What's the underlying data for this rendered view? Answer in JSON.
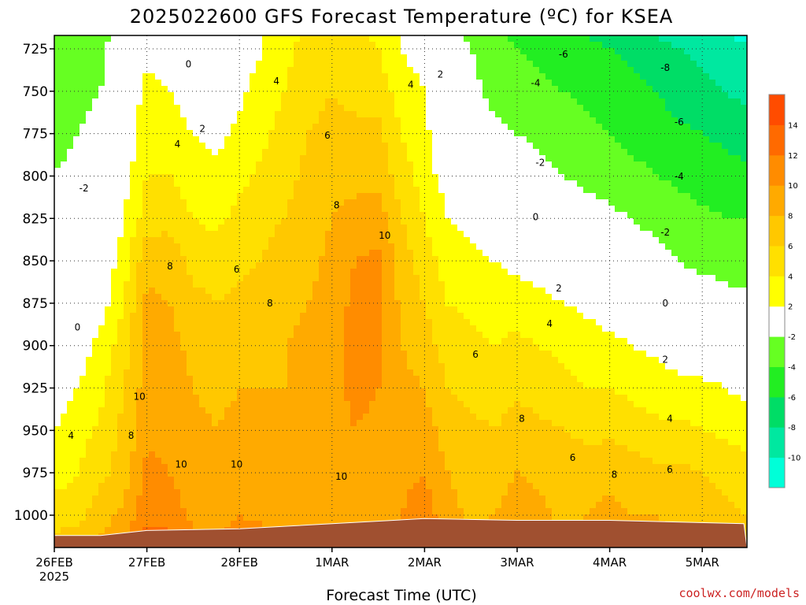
{
  "chart_data": {
    "type": "heatmap",
    "title": "2025022600 GFS Forecast Temperature (ºC) for KSEA",
    "xlabel": "Forecast Time (UTC)",
    "ylabel": "",
    "credit": "coolwx.com/models",
    "x_ticks": [
      {
        "label": "26FEB",
        "sublabel": "2025",
        "day": 0
      },
      {
        "label": "27FEB",
        "sublabel": "",
        "day": 1
      },
      {
        "label": "28FEB",
        "sublabel": "",
        "day": 2
      },
      {
        "label": "1MAR",
        "sublabel": "",
        "day": 3
      },
      {
        "label": "2MAR",
        "sublabel": "",
        "day": 4
      },
      {
        "label": "3MAR",
        "sublabel": "",
        "day": 5
      },
      {
        "label": "4MAR",
        "sublabel": "",
        "day": 6
      },
      {
        "label": "5MAR",
        "sublabel": "",
        "day": 7
      }
    ],
    "xlim": [
      0,
      7.45
    ],
    "y_ticks": [
      725,
      750,
      775,
      800,
      825,
      850,
      875,
      900,
      925,
      950,
      975,
      1000
    ],
    "ylim": [
      1017,
      717
    ],
    "y_scale": "pressure (hPa), decreasing upward",
    "grid": true,
    "colorbar": {
      "levels": [
        -10,
        -8,
        -6,
        -4,
        -2,
        2,
        4,
        6,
        8,
        10,
        12,
        14
      ],
      "colors": [
        "#00ffd8",
        "#00e8a0",
        "#00dd66",
        "#22ee22",
        "#66ff22",
        "#ffffff",
        "#ffff00",
        "#ffe000",
        "#ffc800",
        "#ffaa00",
        "#ff8c00",
        "#ff6a00",
        "#ff4c00"
      ],
      "position": "right"
    },
    "zero_contour_color": "#c8006e",
    "terrain_color": "#a05030",
    "times_days": [
      0,
      0.25,
      0.5,
      0.75,
      1,
      1.25,
      1.5,
      1.75,
      2,
      2.25,
      2.5,
      2.75,
      3,
      3.25,
      3.5,
      3.75,
      4,
      4.25,
      4.5,
      4.75,
      5,
      5.25,
      5.5,
      5.75,
      6,
      6.25,
      6.5,
      6.75,
      7,
      7.25,
      7.45
    ],
    "levels_hpa": [
      1010,
      1000,
      975,
      950,
      925,
      900,
      875,
      850,
      825,
      800,
      775,
      750,
      725,
      717
    ],
    "temperature_c": [
      [
        6.0,
        5.0,
        3.0,
        2.0,
        1.0,
        0.5,
        -0.5,
        -1.0,
        -1.5,
        -2.0,
        -2.5,
        -3.0,
        -3.5,
        -4.0
      ],
      [
        6.5,
        5.5,
        4.0,
        3.0,
        2.0,
        1.0,
        0.5,
        -0.5,
        -1.0,
        -1.5,
        -2.0,
        -2.5,
        -3.0,
        -3.5
      ],
      [
        8.0,
        7.0,
        5.5,
        4.5,
        3.5,
        2.5,
        1.0,
        0.0,
        -0.5,
        -1.0,
        -1.5,
        -2.0,
        -2.5,
        -3.0
      ],
      [
        9.5,
        8.5,
        7.0,
        6.5,
        6.0,
        5.0,
        4.0,
        3.0,
        2.0,
        1.0,
        0.5,
        0.0,
        -0.5,
        -0.5
      ],
      [
        12.5,
        11.5,
        10.5,
        9.5,
        9.0,
        9.0,
        8.5,
        7.5,
        5.0,
        4.0,
        3.5,
        2.5,
        1.5,
        1.0
      ],
      [
        12.0,
        11.0,
        10.0,
        9.5,
        9.0,
        8.5,
        8.0,
        7.0,
        5.5,
        4.0,
        3.0,
        2.0,
        0.5,
        0.0
      ],
      [
        10.0,
        9.5,
        9.0,
        8.5,
        8.0,
        7.5,
        6.5,
        5.5,
        4.0,
        3.0,
        2.0,
        1.0,
        0.0,
        -0.5
      ],
      [
        9.5,
        9.0,
        8.5,
        8.0,
        7.5,
        7.0,
        6.0,
        5.0,
        3.5,
        2.5,
        1.5,
        0.5,
        0.0,
        0.0
      ],
      [
        11.0,
        10.0,
        9.0,
        8.5,
        8.0,
        7.5,
        6.5,
        5.5,
        4.5,
        3.5,
        2.5,
        1.5,
        0.5,
        0.5
      ],
      [
        10.5,
        9.5,
        9.0,
        8.5,
        8.0,
        7.5,
        7.0,
        6.0,
        5.5,
        4.5,
        3.5,
        3.0,
        2.0,
        2.0
      ],
      [
        9.5,
        9.0,
        8.5,
        8.5,
        8.0,
        8.0,
        7.5,
        7.0,
        6.0,
        5.5,
        5.0,
        4.0,
        3.5,
        3.0
      ],
      [
        9.0,
        8.5,
        8.5,
        8.5,
        8.5,
        8.5,
        8.0,
        7.5,
        7.0,
        6.5,
        6.0,
        5.5,
        5.0,
        4.5
      ],
      [
        9.5,
        9.0,
        9.0,
        9.0,
        9.5,
        9.5,
        9.0,
        8.5,
        8.0,
        7.5,
        6.5,
        6.0,
        5.0,
        5.0
      ],
      [
        10.0,
        9.5,
        9.5,
        10.0,
        10.5,
        10.5,
        10.5,
        10.0,
        8.5,
        7.5,
        6.5,
        5.5,
        4.5,
        4.5
      ],
      [
        10.0,
        9.5,
        9.5,
        9.5,
        10.0,
        10.5,
        10.5,
        10.5,
        9.0,
        7.5,
        6.5,
        5.0,
        4.0,
        3.5
      ],
      [
        10.5,
        10.0,
        9.5,
        9.0,
        8.5,
        8.0,
        7.5,
        7.0,
        6.0,
        5.0,
        4.0,
        3.0,
        2.0,
        2.0
      ],
      [
        12.0,
        11.0,
        10.0,
        9.0,
        8.0,
        7.0,
        6.0,
        5.0,
        4.0,
        3.0,
        2.5,
        2.0,
        1.0,
        1.0
      ],
      [
        10.0,
        9.0,
        8.0,
        7.0,
        6.0,
        5.0,
        4.0,
        3.0,
        2.0,
        1.0,
        0.0,
        -0.5,
        -1.0,
        -1.5
      ],
      [
        8.0,
        7.5,
        7.0,
        6.5,
        5.5,
        4.5,
        3.5,
        2.5,
        1.5,
        0.5,
        -0.5,
        -1.5,
        -2.0,
        -2.5
      ],
      [
        8.5,
        8.0,
        7.0,
        6.0,
        5.0,
        4.0,
        3.0,
        2.0,
        0.5,
        -0.5,
        -1.5,
        -2.5,
        -3.0,
        -3.5
      ],
      [
        10.0,
        9.0,
        8.0,
        7.0,
        5.5,
        4.5,
        3.0,
        1.5,
        0.5,
        -1.0,
        -2.0,
        -3.0,
        -4.0,
        -4.5
      ],
      [
        9.0,
        8.5,
        7.5,
        6.5,
        5.0,
        4.0,
        2.5,
        1.0,
        0.0,
        -1.5,
        -2.5,
        -3.5,
        -4.5,
        -5.0
      ],
      [
        8.0,
        7.5,
        7.0,
        6.0,
        4.5,
        3.5,
        2.0,
        0.5,
        -0.5,
        -2.0,
        -3.0,
        -4.0,
        -5.0,
        -5.5
      ],
      [
        8.5,
        8.0,
        7.0,
        5.5,
        4.0,
        3.0,
        1.5,
        0.0,
        -1.0,
        -2.5,
        -3.5,
        -4.5,
        -5.5,
        -6.0
      ],
      [
        9.0,
        8.5,
        7.5,
        5.5,
        4.0,
        2.5,
        1.0,
        -0.5,
        -1.5,
        -3.0,
        -4.0,
        -5.0,
        -6.0,
        -6.5
      ],
      [
        8.5,
        8.0,
        7.0,
        5.0,
        3.5,
        2.0,
        0.5,
        -1.0,
        -2.0,
        -3.5,
        -4.5,
        -5.5,
        -6.5,
        -7.0
      ],
      [
        8.5,
        8.0,
        6.5,
        4.5,
        3.0,
        1.5,
        0.0,
        -1.5,
        -2.5,
        -4.0,
        -5.0,
        -6.0,
        -7.5,
        -8.0
      ],
      [
        8.0,
        7.5,
        6.5,
        4.5,
        2.5,
        1.0,
        -0.5,
        -2.0,
        -3.0,
        -4.5,
        -5.5,
        -7.0,
        -8.0,
        -8.5
      ],
      [
        8.0,
        7.0,
        6.0,
        4.0,
        2.5,
        0.5,
        -1.0,
        -2.5,
        -3.5,
        -5.0,
        -6.0,
        -7.5,
        -8.5,
        -9.5
      ],
      [
        7.5,
        6.5,
        5.5,
        3.5,
        2.0,
        0.0,
        -1.5,
        -2.5,
        -4.0,
        -5.0,
        -6.5,
        -8.0,
        -9.0,
        -10.0
      ],
      [
        7.0,
        6.0,
        5.0,
        3.0,
        1.5,
        -0.5,
        -1.5,
        -3.0,
        -4.0,
        -5.5,
        -7.0,
        -8.5,
        -9.5,
        -10.5
      ]
    ],
    "surface_pressure_hpa": [
      {
        "day": 0,
        "p": 1012
      },
      {
        "day": 0.5,
        "p": 1012
      },
      {
        "day": 1,
        "p": 1009
      },
      {
        "day": 2,
        "p": 1008
      },
      {
        "day": 3,
        "p": 1005
      },
      {
        "day": 4,
        "p": 1002
      },
      {
        "day": 5,
        "p": 1003
      },
      {
        "day": 6,
        "p": 1003
      },
      {
        "day": 7.45,
        "p": 1005
      }
    ],
    "contour_labels": [
      {
        "text": "0",
        "day": 0.25,
        "p": 891
      },
      {
        "text": "-2",
        "day": 0.32,
        "p": 809
      },
      {
        "text": "4",
        "day": 0.18,
        "p": 955
      },
      {
        "text": "10",
        "day": 0.92,
        "p": 932
      },
      {
        "text": "8",
        "day": 0.83,
        "p": 955
      },
      {
        "text": "8",
        "day": 1.25,
        "p": 855
      },
      {
        "text": "4",
        "day": 1.33,
        "p": 783
      },
      {
        "text": "2",
        "day": 1.6,
        "p": 774
      },
      {
        "text": "0",
        "day": 1.45,
        "p": 736
      },
      {
        "text": "10",
        "day": 1.37,
        "p": 972
      },
      {
        "text": "10",
        "day": 1.97,
        "p": 972
      },
      {
        "text": "6",
        "day": 1.97,
        "p": 857
      },
      {
        "text": "8",
        "day": 2.33,
        "p": 877
      },
      {
        "text": "4",
        "day": 2.4,
        "p": 746
      },
      {
        "text": "6",
        "day": 2.95,
        "p": 778
      },
      {
        "text": "8",
        "day": 3.05,
        "p": 819
      },
      {
        "text": "10",
        "day": 3.57,
        "p": 837
      },
      {
        "text": "10",
        "day": 3.1,
        "p": 979
      },
      {
        "text": "4",
        "day": 3.85,
        "p": 748
      },
      {
        "text": "2",
        "day": 4.17,
        "p": 742
      },
      {
        "text": "6",
        "day": 4.55,
        "p": 907
      },
      {
        "text": "8",
        "day": 5.05,
        "p": 945
      },
      {
        "text": "6",
        "day": 5.6,
        "p": 968
      },
      {
        "text": "8",
        "day": 6.05,
        "p": 978
      },
      {
        "text": "4",
        "day": 5.35,
        "p": 889
      },
      {
        "text": "2",
        "day": 5.45,
        "p": 868
      },
      {
        "text": "0",
        "day": 5.2,
        "p": 826
      },
      {
        "text": "-2",
        "day": 5.25,
        "p": 794
      },
      {
        "text": "-4",
        "day": 5.2,
        "p": 747
      },
      {
        "text": "-6",
        "day": 5.5,
        "p": 730
      },
      {
        "text": "-8",
        "day": 6.6,
        "p": 738
      },
      {
        "text": "-6",
        "day": 6.75,
        "p": 770
      },
      {
        "text": "-4",
        "day": 6.75,
        "p": 802
      },
      {
        "text": "-2",
        "day": 6.6,
        "p": 835
      },
      {
        "text": "0",
        "day": 6.6,
        "p": 877
      },
      {
        "text": "2",
        "day": 6.6,
        "p": 910
      },
      {
        "text": "4",
        "day": 6.65,
        "p": 945
      },
      {
        "text": "6",
        "day": 6.65,
        "p": 975
      }
    ]
  }
}
